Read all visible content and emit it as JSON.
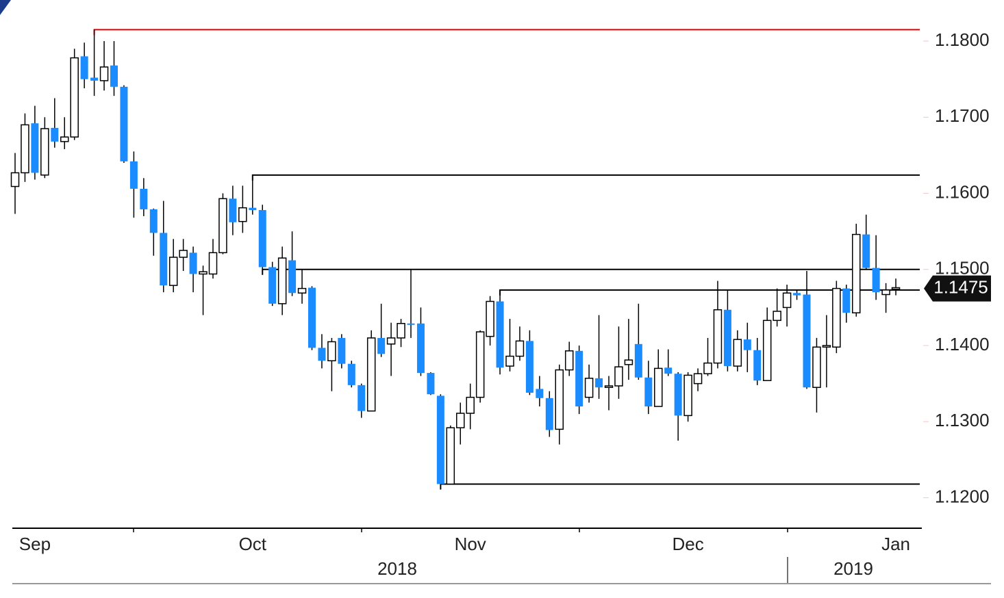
{
  "chart_data": {
    "type": "candlestick",
    "categories": [
      null,
      null,
      "Sep",
      null,
      null,
      null,
      null,
      null,
      null,
      null,
      null,
      null,
      null,
      null,
      null,
      null,
      null,
      null,
      null,
      null,
      null,
      null,
      null,
      null,
      "Oct",
      null,
      null,
      null,
      null,
      null,
      null,
      null,
      null,
      null,
      null,
      null,
      null,
      null,
      null,
      null,
      null,
      null,
      null,
      null,
      null,
      null,
      "Nov",
      null,
      null,
      null,
      null,
      null,
      null,
      null,
      null,
      null,
      null,
      null,
      null,
      null,
      null,
      null,
      null,
      null,
      null,
      null,
      null,
      null,
      "Dec",
      null,
      null,
      null,
      null,
      null,
      null,
      null,
      null,
      null,
      null,
      null,
      null,
      null,
      null,
      null,
      null,
      null,
      null,
      null,
      null,
      "Jan"
    ],
    "years": [
      "2018",
      "2019"
    ],
    "open": [
      1.1609,
      1.1627,
      1.1692,
      1.1624,
      1.1686,
      1.1668,
      1.1674,
      1.178,
      1.1752,
      1.1748,
      1.1768,
      1.174,
      1.1642,
      1.1606,
      1.1579,
      1.1548,
      1.1479,
      1.1516,
      1.1522,
      1.1494,
      1.1494,
      1.1522,
      1.1593,
      1.1563,
      1.1581,
      1.1578,
      1.1503,
      1.1455,
      1.1512,
      1.1469,
      1.1476,
      1.1397,
      1.138,
      1.141,
      1.1376,
      1.1348,
      1.1314,
      1.141,
      1.1402,
      1.141,
      1.1429,
      1.1429,
      1.1364,
      1.1334,
      1.1218,
      1.1292,
      1.1311,
      1.1332,
      1.1412,
      1.1458,
      1.1373,
      1.1386,
      1.1406,
      1.1343,
      1.1331,
      1.129,
      1.1368,
      1.1393,
      1.1332,
      1.1357,
      1.1345,
      1.1347,
      1.1375,
      1.1402,
      1.1358,
      1.132,
      1.1371,
      1.1363,
      1.1308,
      1.135,
      1.1363,
      1.1377,
      1.1447,
      1.1373,
      1.1408,
      1.1394,
      1.1354,
      1.1433,
      1.145,
      1.1469,
      1.1467,
      1.1345,
      1.1398,
      1.1398,
      1.1475,
      1.1443,
      1.1546,
      1.1502,
      1.1467,
      1.1474
    ],
    "high": [
      1.1653,
      1.1705,
      1.1715,
      1.17,
      1.1725,
      1.17,
      1.179,
      1.1798,
      1.1815,
      1.18,
      1.18,
      1.1742,
      1.1655,
      1.162,
      1.158,
      1.159,
      1.154,
      1.154,
      1.153,
      1.1505,
      1.154,
      1.16,
      1.161,
      1.161,
      1.1624,
      1.1585,
      1.151,
      1.153,
      1.155,
      1.15,
      1.1478,
      1.1415,
      1.141,
      1.1415,
      1.138,
      1.135,
      1.142,
      1.1455,
      1.143,
      1.1435,
      1.15,
      1.145,
      1.1365,
      1.1336,
      1.1295,
      1.1325,
      1.135,
      1.142,
      1.1465,
      1.1473,
      1.1435,
      1.1425,
      1.142,
      1.136,
      1.134,
      1.1375,
      1.1405,
      1.14,
      1.1375,
      1.144,
      1.136,
      1.1425,
      1.1435,
      1.1455,
      1.138,
      1.1395,
      1.1395,
      1.1365,
      1.1365,
      1.137,
      1.141,
      1.1485,
      1.1473,
      1.142,
      1.143,
      1.141,
      1.145,
      1.1475,
      1.148,
      1.1473,
      1.1498,
      1.141,
      1.144,
      1.1485,
      1.148,
      1.156,
      1.1572,
      1.1545,
      1.1482,
      1.1488
    ],
    "low": [
      1.1573,
      1.1615,
      1.1618,
      1.162,
      1.166,
      1.1658,
      1.167,
      1.1738,
      1.1728,
      1.1735,
      1.1728,
      1.164,
      1.1568,
      1.157,
      1.1518,
      1.147,
      1.147,
      1.1498,
      1.147,
      1.144,
      1.1488,
      1.152,
      1.1545,
      1.1548,
      1.1572,
      1.15,
      1.1452,
      1.144,
      1.1465,
      1.1455,
      1.1394,
      1.137,
      1.134,
      1.137,
      1.1345,
      1.1305,
      1.1314,
      1.1385,
      1.136,
      1.1398,
      1.141,
      1.136,
      1.1335,
      1.1218,
      1.1218,
      1.127,
      1.129,
      1.1325,
      1.14,
      1.1362,
      1.1366,
      1.138,
      1.1335,
      1.132,
      1.128,
      1.127,
      1.136,
      1.131,
      1.1325,
      1.133,
      1.1315,
      1.133,
      1.1355,
      1.1355,
      1.131,
      1.132,
      1.136,
      1.1275,
      1.13,
      1.134,
      1.136,
      1.137,
      1.1366,
      1.1366,
      1.1365,
      1.1348,
      1.1354,
      1.1425,
      1.1425,
      1.146,
      1.1343,
      1.1312,
      1.1345,
      1.139,
      1.143,
      1.1438,
      1.15,
      1.146,
      1.1443,
      1.1466
    ],
    "close": [
      1.1627,
      1.169,
      1.1627,
      1.1685,
      1.1668,
      1.1674,
      1.1778,
      1.175,
      1.1748,
      1.1766,
      1.174,
      1.1642,
      1.1606,
      1.1579,
      1.1548,
      1.1479,
      1.1516,
      1.1525,
      1.1494,
      1.1497,
      1.1522,
      1.1593,
      1.1562,
      1.1581,
      1.1578,
      1.1503,
      1.1455,
      1.1515,
      1.1469,
      1.1475,
      1.1397,
      1.138,
      1.1405,
      1.1376,
      1.1348,
      1.1314,
      1.141,
      1.1389,
      1.141,
      1.1429,
      1.1428,
      1.1364,
      1.1336,
      1.1218,
      1.1292,
      1.1311,
      1.1332,
      1.1418,
      1.1458,
      1.1371,
      1.1386,
      1.1406,
      1.1338,
      1.1331,
      1.1289,
      1.1368,
      1.1393,
      1.132,
      1.1357,
      1.1345,
      1.1347,
      1.1372,
      1.1381,
      1.1358,
      1.132,
      1.137,
      1.1363,
      1.1308,
      1.1361,
      1.1363,
      1.1377,
      1.1447,
      1.1373,
      1.1408,
      1.1394,
      1.1354,
      1.1433,
      1.1445,
      1.1469,
      1.1466,
      1.1345,
      1.1398,
      1.14,
      1.1475,
      1.1443,
      1.1546,
      1.1502,
      1.147,
      1.1473,
      1.1476
    ],
    "up_color": "#ffffff",
    "down_color": "#1a8cff",
    "levels": [
      {
        "value": 1.1815,
        "color": "#e00000"
      },
      {
        "value": 1.1624,
        "color": "#000000"
      },
      {
        "value": 1.15,
        "color": "#000000"
      },
      {
        "value": 1.1473,
        "color": "#000000"
      },
      {
        "value": 1.1218,
        "color": "#000000"
      }
    ],
    "last_price": 1.1475,
    "ylim": [
      1.116,
      1.1854
    ],
    "yticks": [
      {
        "value": 1.12,
        "label": "1.1200"
      },
      {
        "value": 1.13,
        "label": "1.1300"
      },
      {
        "value": 1.14,
        "label": "1.1400"
      },
      {
        "value": 1.15,
        "label": "1.1500"
      },
      {
        "value": 1.16,
        "label": "1.1600"
      },
      {
        "value": 1.17,
        "label": "1.1700"
      },
      {
        "value": 1.18,
        "label": "1.1800"
      }
    ],
    "y_axis_side": "right"
  }
}
